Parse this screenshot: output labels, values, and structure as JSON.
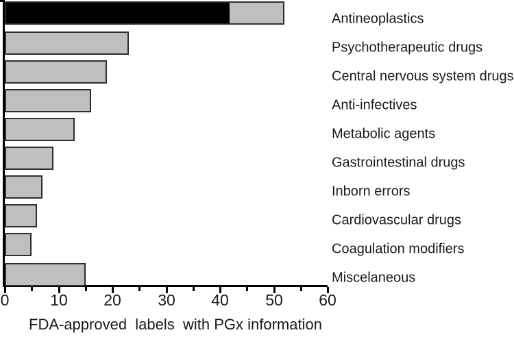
{
  "chart_data": {
    "type": "bar",
    "orientation": "horizontal",
    "title": "",
    "xlabel": "FDA-approved  labels  with PGx information",
    "ylabel": "",
    "xlim": [
      0,
      60
    ],
    "xticks": [
      0,
      10,
      20,
      30,
      40,
      50,
      60
    ],
    "minor_xticks": [
      5,
      15,
      25,
      35,
      45,
      55
    ],
    "grid": false,
    "legend": false,
    "categories": [
      "Antineoplastics",
      "Psychotherapeutic drugs",
      "Central nervous system drugs",
      "Anti-infectives",
      "Metabolic agents",
      "Gastrointestinal drugs",
      "Inborn errors",
      "Cardiovascular drugs",
      "Coagulation modifiers",
      "Miscelaneous"
    ],
    "series": [
      {
        "name": "highlighted segment",
        "color": "#000000",
        "values": [
          42,
          0,
          0,
          0,
          0,
          0,
          0,
          0,
          0,
          0
        ]
      },
      {
        "name": "base segment",
        "color": "#bfbfbf",
        "values": [
          10,
          23,
          19,
          16,
          13,
          9,
          7,
          6,
          5,
          15
        ]
      }
    ],
    "totals": [
      52,
      23,
      19,
      16,
      13,
      9,
      7,
      6,
      5,
      15
    ],
    "bar_border_color": "#2e2e2e",
    "axis_color": "#000000",
    "text_color": "#1a1a1a"
  }
}
